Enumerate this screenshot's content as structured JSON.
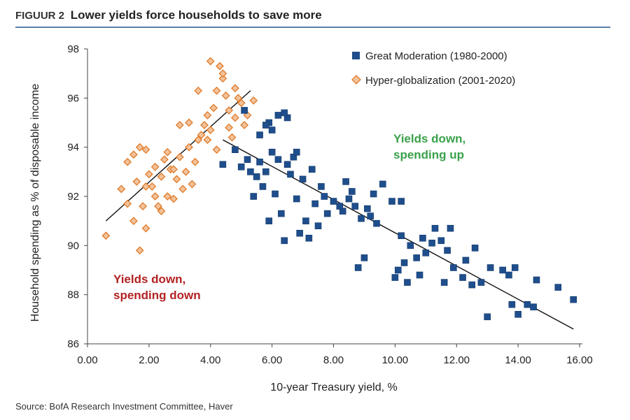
{
  "header": {
    "figure_label": "FIGUUR 2",
    "title": "Lower yields force households to save more"
  },
  "source": "Source: BofA Research Investment Committee, Haver",
  "colors": {
    "great_moderation": "#1f4e8c",
    "hyper_globalization": "#e07b2a",
    "hyper_globalization_fill": "#f2c29a",
    "annot_red": "#b22222",
    "annot_green": "#3aa14a",
    "rule": "#5b7fa8"
  },
  "chart_data": {
    "type": "scatter",
    "xlabel": "10-year Treasury yield, %",
    "ylabel": "Household spending as % of disposable income",
    "xlim": [
      0,
      16
    ],
    "ylim": [
      86,
      98
    ],
    "x_ticks": [
      "0.00",
      "2.00",
      "4.00",
      "6.00",
      "8.00",
      "10.00",
      "12.00",
      "14.00",
      "16.00"
    ],
    "y_ticks": [
      "86",
      "88",
      "90",
      "92",
      "94",
      "96",
      "98"
    ],
    "legend_position": "top-right",
    "series": [
      {
        "name": "Great Moderation (1980-2000)",
        "marker": "square",
        "points": [
          [
            15.8,
            87.8
          ],
          [
            15.3,
            88.3
          ],
          [
            14.6,
            88.6
          ],
          [
            14.5,
            87.5
          ],
          [
            14.3,
            87.6
          ],
          [
            14.0,
            87.2
          ],
          [
            13.9,
            89.1
          ],
          [
            13.8,
            87.6
          ],
          [
            13.7,
            88.8
          ],
          [
            13.5,
            89.0
          ],
          [
            13.1,
            89.1
          ],
          [
            13.0,
            87.1
          ],
          [
            12.8,
            88.5
          ],
          [
            12.6,
            89.9
          ],
          [
            12.5,
            88.4
          ],
          [
            12.3,
            89.4
          ],
          [
            12.2,
            88.7
          ],
          [
            11.9,
            89.1
          ],
          [
            11.8,
            90.7
          ],
          [
            11.7,
            89.8
          ],
          [
            11.6,
            88.5
          ],
          [
            11.5,
            90.2
          ],
          [
            11.3,
            90.7
          ],
          [
            11.2,
            90.1
          ],
          [
            11.0,
            89.7
          ],
          [
            10.9,
            90.3
          ],
          [
            10.8,
            88.8
          ],
          [
            10.7,
            89.5
          ],
          [
            10.5,
            90.0
          ],
          [
            10.4,
            88.5
          ],
          [
            10.3,
            89.3
          ],
          [
            10.2,
            90.4
          ],
          [
            10.1,
            89.0
          ],
          [
            10.0,
            88.7
          ],
          [
            9.9,
            91.8
          ],
          [
            10.2,
            91.8
          ],
          [
            9.4,
            90.9
          ],
          [
            9.2,
            91.2
          ],
          [
            9.0,
            89.5
          ],
          [
            8.8,
            89.1
          ],
          [
            8.7,
            91.6
          ],
          [
            8.6,
            92.2
          ],
          [
            8.5,
            91.9
          ],
          [
            8.4,
            92.6
          ],
          [
            8.3,
            91.4
          ],
          [
            8.2,
            91.6
          ],
          [
            8.0,
            91.8
          ],
          [
            7.8,
            91.3
          ],
          [
            7.7,
            92.0
          ],
          [
            7.6,
            92.4
          ],
          [
            7.5,
            90.8
          ],
          [
            7.4,
            91.7
          ],
          [
            7.2,
            90.3
          ],
          [
            7.1,
            91.0
          ],
          [
            7.0,
            92.7
          ],
          [
            6.9,
            90.5
          ],
          [
            6.8,
            91.9
          ],
          [
            6.7,
            93.6
          ],
          [
            6.6,
            92.9
          ],
          [
            6.5,
            93.3
          ],
          [
            6.4,
            90.2
          ],
          [
            6.3,
            91.3
          ],
          [
            6.2,
            93.5
          ],
          [
            6.1,
            92.1
          ],
          [
            6.0,
            93.8
          ],
          [
            5.9,
            91.0
          ],
          [
            5.8,
            93.0
          ],
          [
            5.7,
            92.4
          ],
          [
            5.6,
            93.4
          ],
          [
            5.5,
            92.8
          ],
          [
            5.4,
            92.0
          ],
          [
            5.3,
            93.0
          ],
          [
            5.2,
            93.5
          ],
          [
            5.0,
            93.2
          ],
          [
            4.8,
            93.9
          ],
          [
            4.4,
            93.3
          ],
          [
            5.1,
            95.5
          ],
          [
            5.6,
            94.5
          ],
          [
            5.9,
            95.0
          ],
          [
            6.2,
            95.3
          ],
          [
            6.5,
            95.2
          ],
          [
            6.0,
            94.7
          ],
          [
            5.8,
            94.9
          ],
          [
            6.4,
            95.4
          ],
          [
            9.1,
            91.5
          ],
          [
            9.3,
            92.1
          ],
          [
            7.3,
            93.1
          ],
          [
            6.8,
            93.8
          ],
          [
            9.6,
            92.5
          ],
          [
            8.9,
            91.1
          ]
        ]
      },
      {
        "name": "Hyper-globalization (2001-2020)",
        "marker": "diamond",
        "points": [
          [
            0.6,
            90.4
          ],
          [
            1.7,
            89.8
          ],
          [
            1.9,
            90.7
          ],
          [
            1.1,
            92.3
          ],
          [
            1.3,
            91.7
          ],
          [
            1.5,
            91.0
          ],
          [
            1.6,
            92.6
          ],
          [
            1.8,
            91.6
          ],
          [
            1.3,
            93.4
          ],
          [
            1.5,
            93.7
          ],
          [
            1.7,
            94.0
          ],
          [
            1.9,
            93.9
          ],
          [
            2.0,
            92.9
          ],
          [
            2.1,
            92.4
          ],
          [
            2.2,
            93.2
          ],
          [
            2.3,
            91.6
          ],
          [
            2.4,
            92.8
          ],
          [
            2.5,
            93.5
          ],
          [
            2.6,
            92.0
          ],
          [
            2.7,
            93.1
          ],
          [
            2.8,
            91.9
          ],
          [
            2.9,
            92.7
          ],
          [
            3.0,
            93.6
          ],
          [
            3.1,
            92.3
          ],
          [
            3.2,
            93.0
          ],
          [
            3.3,
            94.0
          ],
          [
            3.4,
            92.5
          ],
          [
            3.5,
            93.4
          ],
          [
            3.6,
            94.3
          ],
          [
            3.7,
            94.5
          ],
          [
            3.8,
            94.9
          ],
          [
            3.9,
            95.3
          ],
          [
            4.0,
            94.7
          ],
          [
            4.1,
            95.6
          ],
          [
            4.2,
            96.3
          ],
          [
            4.3,
            97.3
          ],
          [
            4.4,
            96.8
          ],
          [
            4.5,
            96.1
          ],
          [
            4.6,
            95.5
          ],
          [
            4.7,
            94.4
          ],
          [
            4.8,
            95.2
          ],
          [
            4.9,
            96.0
          ],
          [
            5.0,
            95.8
          ],
          [
            5.2,
            95.3
          ],
          [
            5.4,
            95.9
          ],
          [
            4.0,
            97.5
          ],
          [
            4.4,
            97.0
          ],
          [
            3.6,
            96.3
          ],
          [
            4.2,
            93.9
          ],
          [
            3.9,
            94.3
          ],
          [
            2.2,
            92.0
          ],
          [
            2.6,
            93.8
          ],
          [
            1.9,
            92.4
          ],
          [
            2.4,
            91.4
          ],
          [
            3.0,
            94.9
          ],
          [
            3.3,
            95.0
          ],
          [
            4.6,
            94.8
          ],
          [
            4.8,
            96.4
          ],
          [
            5.1,
            94.9
          ],
          [
            2.8,
            93.1
          ]
        ]
      }
    ],
    "fit_lines": [
      {
        "from": [
          0.6,
          91.0
        ],
        "to": [
          5.3,
          96.3
        ]
      },
      {
        "from": [
          4.4,
          94.3
        ],
        "to": [
          15.8,
          86.6
        ]
      }
    ],
    "annotations": [
      {
        "text_lines": [
          "Yields down,",
          "spending down"
        ],
        "color": "red"
      },
      {
        "text_lines": [
          "Yields down,",
          "spending up"
        ],
        "color": "green"
      }
    ]
  }
}
